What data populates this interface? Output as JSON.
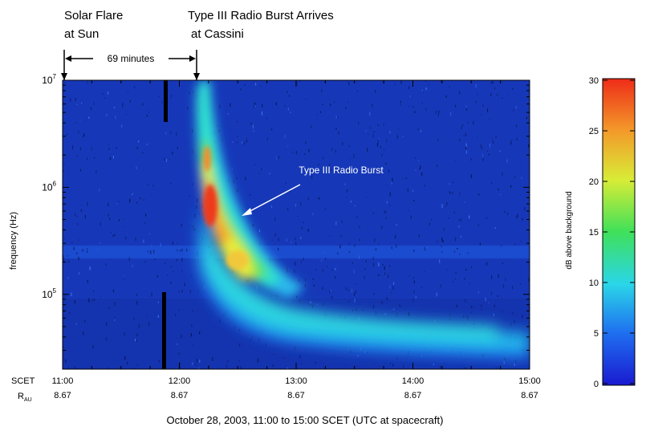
{
  "annotations": {
    "flare_line1": "Solar Flare",
    "flare_line2": "at Sun",
    "arrival_line1": "Type III Radio Burst Arrives",
    "arrival_line2": "at Cassini",
    "delay_label": "69 minutes",
    "burst_label": "Type III Radio Burst"
  },
  "chart_data": {
    "type": "heatmap",
    "title": "",
    "xlabel": "October 28, 2003, 11:00 to 15:00 SCET (UTC at spacecraft)",
    "ylabel": "frequency (Hz)",
    "x_row_label": "SCET",
    "r_row_label": "R",
    "r_row_label_sub": "AU",
    "x_ticks": [
      "11:00",
      "12:00",
      "13:00",
      "14:00",
      "15:00"
    ],
    "x_tick_hours": [
      11,
      12,
      13,
      14,
      15
    ],
    "r_values": [
      "8.67",
      "8.67",
      "8.67",
      "8.67",
      "8.67"
    ],
    "xlim_hours": [
      11,
      15
    ],
    "yscale": "log",
    "y_tick_base": "10",
    "y_tick_exponents": [
      "5",
      "6",
      "7"
    ],
    "ylim_hz": [
      20000,
      10000000
    ],
    "flare_time_hours": 11.0,
    "arrival_time_hours": 12.15,
    "delay_minutes": 69,
    "burst_intensity_profile": [
      {
        "time_hours": 12.05,
        "freq_hz": 10000000,
        "db": 12
      },
      {
        "time_hours": 12.1,
        "freq_hz": 3000000,
        "db": 20
      },
      {
        "time_hours": 12.18,
        "freq_hz": 1000000,
        "db": 28
      },
      {
        "time_hours": 12.3,
        "freq_hz": 400000,
        "db": 24
      },
      {
        "time_hours": 12.5,
        "freq_hz": 200000,
        "db": 18
      },
      {
        "time_hours": 13.0,
        "freq_hz": 90000,
        "db": 12
      },
      {
        "time_hours": 14.0,
        "freq_hz": 50000,
        "db": 9
      },
      {
        "time_hours": 15.0,
        "freq_hz": 35000,
        "db": 7
      }
    ],
    "colorbar": {
      "label": "dB above background",
      "min": 0,
      "max": 30,
      "ticks": [
        "0",
        "5",
        "10",
        "15",
        "20",
        "25",
        "30"
      ]
    },
    "colors": {
      "background": "#1638b8",
      "cyan": "#24d8e6",
      "green": "#4fe06a",
      "yellow": "#f2ee3c",
      "orange": "#f39a2a",
      "red": "#ee3a1c"
    }
  }
}
